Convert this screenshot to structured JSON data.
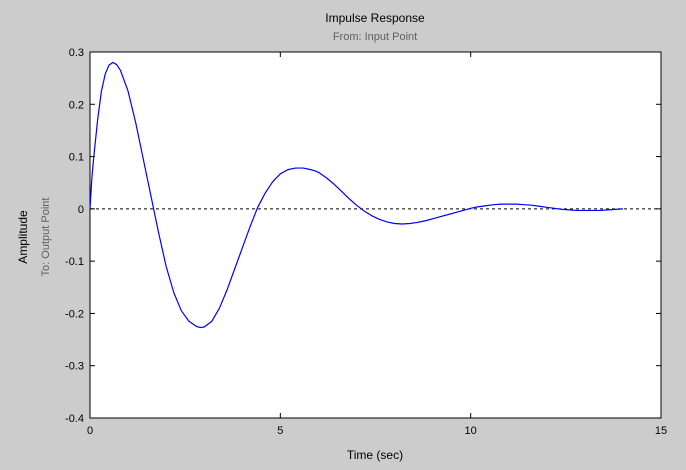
{
  "chart_data": {
    "type": "line",
    "title": "Impulse Response",
    "subtitle": "From: Input Point",
    "xlabel": "Time (sec)",
    "ylabel": "Amplitude",
    "ylabel2": "To: Output Point",
    "xlim": [
      0,
      15
    ],
    "ylim": [
      -0.4,
      0.3
    ],
    "xticks": [
      0,
      5,
      10,
      15
    ],
    "xtick_labels": [
      "0",
      "5",
      "10",
      "15"
    ],
    "yticks": [
      -0.4,
      -0.3,
      -0.2,
      -0.1,
      0,
      0.1,
      0.2,
      0.3
    ],
    "ytick_labels": [
      "-0.4",
      "-0.3",
      "-0.2",
      "-0.1",
      "0",
      "0.1",
      "0.2",
      "0.3"
    ],
    "grid": false,
    "reference_line": {
      "y": 0,
      "style": "dashed",
      "color": "#000000"
    },
    "series": [
      {
        "color": "#0000ff",
        "x": [
          0,
          0.05,
          0.1,
          0.2,
          0.3,
          0.4,
          0.5,
          0.6,
          0.7,
          0.8,
          1.0,
          1.2,
          1.4,
          1.6,
          1.7,
          1.8,
          2.0,
          2.2,
          2.4,
          2.6,
          2.8,
          2.9,
          3.0,
          3.2,
          3.4,
          3.6,
          3.8,
          4.0,
          4.2,
          4.4,
          4.6,
          4.8,
          5.0,
          5.2,
          5.4,
          5.6,
          5.8,
          5.9,
          6.0,
          6.2,
          6.4,
          6.6,
          6.8,
          7.0,
          7.2,
          7.4,
          7.6,
          7.8,
          8.0,
          8.2,
          8.4,
          8.6,
          8.8,
          9.0,
          9.2,
          9.4,
          9.6,
          9.8,
          10.0,
          10.2,
          10.4,
          10.6,
          10.8,
          11.0,
          11.2,
          11.4,
          11.6,
          11.8,
          12.0,
          12.2,
          12.4,
          12.6,
          12.8,
          13.0,
          13.2,
          13.4,
          13.6,
          13.8,
          14.0
        ],
        "y": [
          0,
          0.06,
          0.1,
          0.17,
          0.225,
          0.258,
          0.275,
          0.28,
          0.276,
          0.265,
          0.225,
          0.165,
          0.095,
          0.025,
          -0.01,
          -0.045,
          -0.11,
          -0.16,
          -0.195,
          -0.215,
          -0.225,
          -0.227,
          -0.226,
          -0.215,
          -0.19,
          -0.155,
          -0.115,
          -0.075,
          -0.035,
          0.002,
          0.03,
          0.052,
          0.067,
          0.075,
          0.078,
          0.078,
          0.075,
          0.073,
          0.07,
          0.06,
          0.048,
          0.034,
          0.02,
          0.007,
          -0.004,
          -0.013,
          -0.02,
          -0.025,
          -0.028,
          -0.029,
          -0.028,
          -0.026,
          -0.023,
          -0.019,
          -0.015,
          -0.011,
          -0.007,
          -0.003,
          0.001,
          0.004,
          0.006,
          0.008,
          0.009,
          0.009,
          0.009,
          0.008,
          0.007,
          0.005,
          0.003,
          0.001,
          -0.001,
          -0.002,
          -0.003,
          -0.003,
          -0.003,
          -0.003,
          -0.002,
          -0.001,
          0
        ]
      }
    ]
  }
}
